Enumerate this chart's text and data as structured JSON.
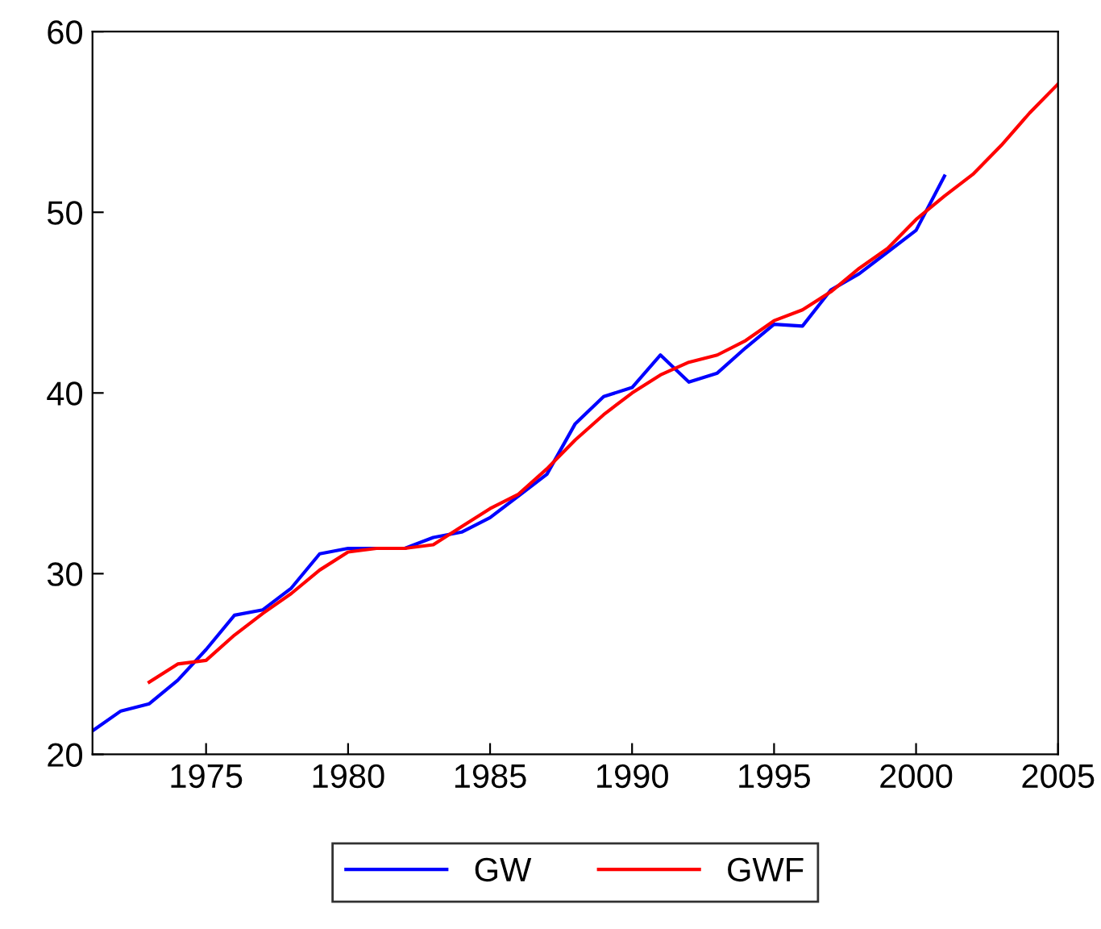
{
  "chart_data": {
    "type": "line",
    "xlim": [
      1971,
      2005
    ],
    "xticks": [
      1975,
      1980,
      1985,
      1990,
      1995,
      2000,
      2005
    ],
    "ylim": [
      20,
      60
    ],
    "yticks": [
      20,
      30,
      40,
      50,
      60
    ],
    "grid": false,
    "legend": "bottom",
    "marker": "none",
    "line_style": "solid",
    "series": [
      {
        "name": "GW",
        "color": "#0000ff",
        "x": [
          1971,
          1972,
          1973,
          1974,
          1975,
          1976,
          1977,
          1978,
          1979,
          1980,
          1981,
          1982,
          1983,
          1984,
          1985,
          1986,
          1987,
          1988,
          1989,
          1990,
          1991,
          1992,
          1993,
          1994,
          1995,
          1996,
          1997,
          1998,
          1999,
          2000,
          2001
        ],
        "values": [
          21.3,
          22.4,
          22.8,
          24.1,
          25.8,
          27.7,
          28.0,
          29.2,
          31.1,
          31.4,
          31.4,
          31.4,
          32.0,
          32.3,
          33.1,
          34.3,
          35.5,
          38.3,
          39.8,
          40.3,
          42.1,
          40.6,
          41.1,
          42.5,
          43.8,
          43.7,
          45.7,
          46.6,
          47.8,
          49.0,
          52.0
        ]
      },
      {
        "name": "GWF",
        "color": "#ff0000",
        "x": [
          1973,
          1974,
          1975,
          1976,
          1977,
          1978,
          1979,
          1980,
          1981,
          1982,
          1983,
          1984,
          1985,
          1986,
          1987,
          1988,
          1989,
          1990,
          1991,
          1992,
          1993,
          1994,
          1995,
          1996,
          1997,
          1998,
          1999,
          2000,
          2001,
          2002,
          2003,
          2004,
          2005
        ],
        "values": [
          24.0,
          25.0,
          25.2,
          26.6,
          27.8,
          28.9,
          30.2,
          31.2,
          31.4,
          31.4,
          31.6,
          32.6,
          33.6,
          34.4,
          35.8,
          37.4,
          38.8,
          40.0,
          41.0,
          41.7,
          42.1,
          42.9,
          44.0,
          44.6,
          45.6,
          46.9,
          48.0,
          49.6,
          50.9,
          52.1,
          53.7,
          55.5,
          57.1
        ]
      }
    ]
  }
}
